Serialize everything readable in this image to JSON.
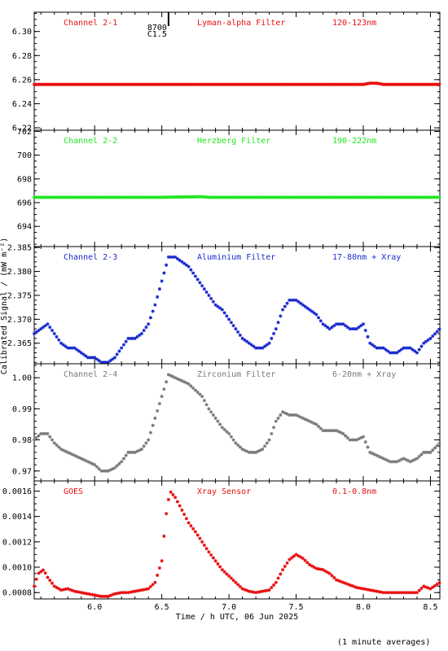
{
  "figure": {
    "xlabel": "Time / h UTC, 06 Jun 2025",
    "ylabel": "Calibrated Signal / (mW m⁻²)",
    "footnote": "(1 minute averages)"
  },
  "event_marker": {
    "x": 6.55,
    "labels": [
      "8700",
      "C1.5"
    ]
  },
  "chart_data": [
    {
      "type": "scatter",
      "channel": "Channel 2-1",
      "filter": "Lyman-alpha Filter",
      "band": "120-123nm",
      "color": "#e81010",
      "xlim": [
        5.55,
        8.57
      ],
      "ylim": [
        6.218,
        6.316
      ],
      "yticks": [
        6.22,
        6.24,
        6.26,
        6.28,
        6.3
      ],
      "ytick_labels": [
        "6.22",
        "6.24",
        "6.26",
        "6.28",
        "6.30"
      ],
      "yminor": 0.005,
      "x": [
        5.55,
        6.0,
        6.5,
        7.0,
        7.5,
        8.0,
        8.05,
        8.1,
        8.15,
        8.57
      ],
      "y": [
        6.256,
        6.256,
        6.256,
        6.256,
        6.256,
        6.256,
        6.257,
        6.257,
        6.256,
        6.256
      ]
    },
    {
      "type": "scatter",
      "channel": "Channel 2-2",
      "filter": "Herzberg Filter",
      "band": "190-222nm",
      "color": "#22e622",
      "xlim": [
        5.55,
        8.57
      ],
      "ylim": [
        692.3,
        702.1
      ],
      "yticks": [
        694,
        696,
        698,
        700,
        702
      ],
      "ytick_labels": [
        "694",
        "696",
        "698",
        "700",
        "702"
      ],
      "yminor": 0.5,
      "x": [
        5.55,
        6.0,
        6.5,
        6.8,
        6.85,
        7.0,
        7.5,
        8.0,
        8.57
      ],
      "y": [
        696.45,
        696.45,
        696.45,
        696.5,
        696.45,
        696.45,
        696.45,
        696.45,
        696.45
      ]
    },
    {
      "type": "scatter",
      "channel": "Channel 2-3",
      "filter": "Aluminium Filter",
      "band": "17-80nm + Xray",
      "color": "#1a2ad0",
      "xlim": [
        5.55,
        8.57
      ],
      "ylim": [
        2.3607,
        2.3852
      ],
      "yticks": [
        2.365,
        2.37,
        2.375,
        2.38,
        2.385
      ],
      "ytick_labels": [
        "2.365",
        "2.370",
        "2.375",
        "2.380",
        "2.385"
      ],
      "yminor": 0.001,
      "x": [
        5.55,
        5.6,
        5.65,
        5.7,
        5.75,
        5.8,
        5.85,
        5.9,
        5.95,
        6.0,
        6.05,
        6.1,
        6.15,
        6.2,
        6.25,
        6.3,
        6.35,
        6.4,
        6.45,
        6.5,
        6.55,
        6.6,
        6.65,
        6.7,
        6.75,
        6.8,
        6.85,
        6.9,
        6.95,
        7.0,
        7.05,
        7.1,
        7.15,
        7.2,
        7.25,
        7.3,
        7.35,
        7.4,
        7.45,
        7.5,
        7.55,
        7.6,
        7.65,
        7.7,
        7.75,
        7.8,
        7.85,
        7.9,
        7.95,
        8.0,
        8.05,
        8.1,
        8.15,
        8.2,
        8.25,
        8.3,
        8.35,
        8.4,
        8.45,
        8.5,
        8.57
      ],
      "y": [
        2.367,
        2.368,
        2.369,
        2.367,
        2.365,
        2.364,
        2.364,
        2.363,
        2.362,
        2.362,
        2.361,
        2.361,
        2.362,
        2.364,
        2.366,
        2.366,
        2.367,
        2.369,
        2.373,
        2.378,
        2.383,
        2.383,
        2.382,
        2.381,
        2.379,
        2.377,
        2.375,
        2.373,
        2.372,
        2.37,
        2.368,
        2.366,
        2.365,
        2.364,
        2.364,
        2.365,
        2.368,
        2.372,
        2.374,
        2.374,
        2.373,
        2.372,
        2.371,
        2.369,
        2.368,
        2.369,
        2.369,
        2.368,
        2.368,
        2.369,
        2.365,
        2.364,
        2.364,
        2.363,
        2.363,
        2.364,
        2.364,
        2.363,
        2.365,
        2.366,
        2.368
      ]
    },
    {
      "type": "scatter",
      "channel": "Channel 2-4",
      "filter": "Zirconium Filter",
      "band": "6-20nm + Xray",
      "color": "#7a7a7a",
      "xlim": [
        5.55,
        8.57
      ],
      "ylim": [
        0.9668,
        1.0045
      ],
      "yticks": [
        0.97,
        0.98,
        0.99,
        1.0
      ],
      "ytick_labels": [
        "0.97",
        "0.98",
        "0.99",
        "1.00"
      ],
      "yminor": 0.002,
      "x": [
        5.55,
        5.6,
        5.65,
        5.7,
        5.75,
        5.8,
        5.85,
        5.9,
        5.95,
        6.0,
        6.05,
        6.1,
        6.15,
        6.2,
        6.25,
        6.3,
        6.35,
        6.4,
        6.45,
        6.5,
        6.55,
        6.6,
        6.65,
        6.7,
        6.75,
        6.8,
        6.85,
        6.9,
        6.95,
        7.0,
        7.05,
        7.1,
        7.15,
        7.2,
        7.25,
        7.3,
        7.35,
        7.4,
        7.45,
        7.5,
        7.55,
        7.6,
        7.65,
        7.7,
        7.75,
        7.8,
        7.85,
        7.9,
        7.95,
        8.0,
        8.05,
        8.1,
        8.15,
        8.2,
        8.25,
        8.3,
        8.35,
        8.4,
        8.45,
        8.5,
        8.57
      ],
      "y": [
        0.98,
        0.982,
        0.982,
        0.979,
        0.977,
        0.976,
        0.975,
        0.974,
        0.973,
        0.972,
        0.97,
        0.97,
        0.971,
        0.973,
        0.976,
        0.976,
        0.977,
        0.98,
        0.987,
        0.994,
        1.001,
        1.0,
        0.999,
        0.998,
        0.996,
        0.994,
        0.99,
        0.987,
        0.984,
        0.982,
        0.979,
        0.977,
        0.976,
        0.976,
        0.977,
        0.98,
        0.986,
        0.989,
        0.988,
        0.988,
        0.987,
        0.986,
        0.985,
        0.983,
        0.983,
        0.983,
        0.982,
        0.98,
        0.98,
        0.981,
        0.976,
        0.975,
        0.974,
        0.973,
        0.973,
        0.974,
        0.973,
        0.974,
        0.976,
        0.976,
        0.979
      ]
    },
    {
      "type": "scatter",
      "channel": "GOES",
      "filter": "Xray Sensor",
      "band": "0.1-0.8nm",
      "color": "#e81010",
      "xlim": [
        5.55,
        8.57
      ],
      "ylim": [
        0.00075,
        0.00168
      ],
      "yticks": [
        0.0008,
        0.001,
        0.0012,
        0.0014,
        0.0016
      ],
      "ytick_labels": [
        "0.0008",
        "0.0010",
        "0.0012",
        "0.0014",
        "0.0016"
      ],
      "yminor": 5e-05,
      "xticks": [
        6.0,
        6.5,
        7.0,
        7.5,
        8.0,
        8.5
      ],
      "xtick_labels": [
        "6.0",
        "6.5",
        "7.0",
        "7.5",
        "8.0",
        "8.5"
      ],
      "xminor": 0.1,
      "x": [
        5.55,
        5.58,
        5.62,
        5.65,
        5.7,
        5.75,
        5.8,
        5.85,
        5.9,
        5.95,
        6.0,
        6.05,
        6.1,
        6.15,
        6.2,
        6.25,
        6.3,
        6.35,
        6.4,
        6.45,
        6.5,
        6.53,
        6.56,
        6.6,
        6.65,
        6.7,
        6.75,
        6.8,
        6.85,
        6.9,
        6.95,
        7.0,
        7.05,
        7.1,
        7.15,
        7.2,
        7.25,
        7.3,
        7.35,
        7.4,
        7.45,
        7.5,
        7.55,
        7.6,
        7.65,
        7.7,
        7.75,
        7.8,
        7.85,
        7.9,
        7.95,
        8.0,
        8.05,
        8.1,
        8.15,
        8.2,
        8.25,
        8.3,
        8.35,
        8.4,
        8.45,
        8.5,
        8.57
      ],
      "y": [
        0.00085,
        0.00095,
        0.00098,
        0.00092,
        0.00085,
        0.00082,
        0.00083,
        0.00081,
        0.0008,
        0.00079,
        0.00078,
        0.00077,
        0.00077,
        0.00079,
        0.0008,
        0.0008,
        0.00081,
        0.00082,
        0.00083,
        0.00088,
        0.00105,
        0.0014,
        0.0016,
        0.00155,
        0.00145,
        0.00135,
        0.00128,
        0.0012,
        0.00112,
        0.00105,
        0.00098,
        0.00093,
        0.00088,
        0.00083,
        0.00081,
        0.0008,
        0.00081,
        0.00082,
        0.00088,
        0.00098,
        0.00106,
        0.0011,
        0.00107,
        0.00102,
        0.00099,
        0.00098,
        0.00095,
        0.0009,
        0.00088,
        0.00086,
        0.00084,
        0.00083,
        0.00082,
        0.00081,
        0.0008,
        0.0008,
        0.0008,
        0.0008,
        0.0008,
        0.0008,
        0.00085,
        0.00083,
        0.00088
      ]
    }
  ]
}
